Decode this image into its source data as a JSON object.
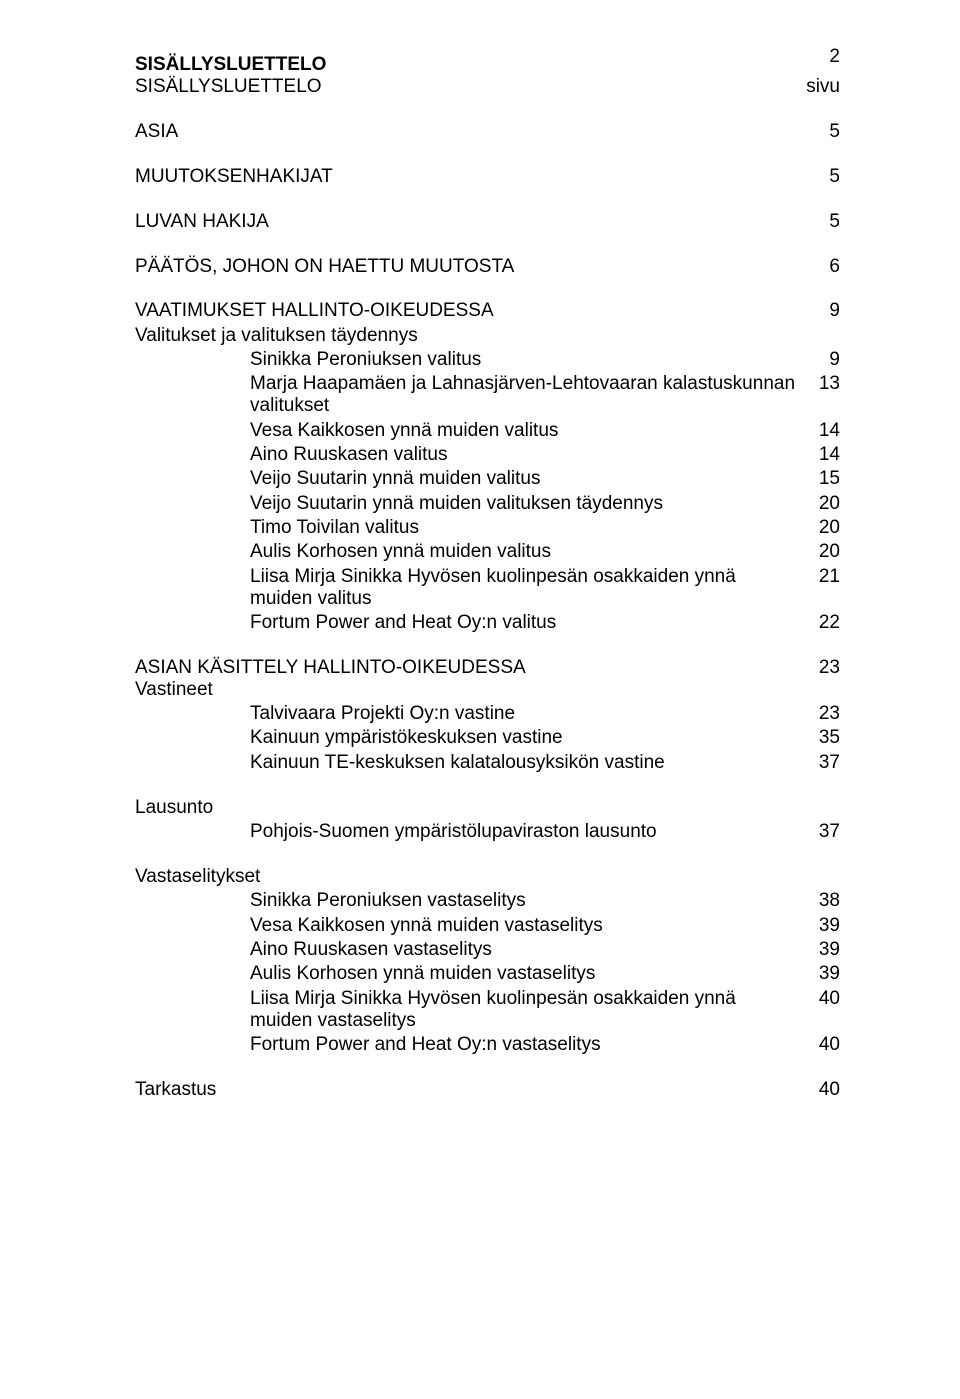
{
  "page_number": "2",
  "font": {
    "family": "Arial",
    "base_size_pt": 14
  },
  "colors": {
    "text": "#000000",
    "background": "#ffffff"
  },
  "heading1": "SISÄLLYSLUETTELO",
  "heading1_sub": "SISÄLLYSLUETTELO",
  "sivu_label": "sivu",
  "sections": {
    "asia": {
      "label": "ASIA",
      "page": "5"
    },
    "muutoksenhakijat": {
      "label": "MUUTOKSENHAKIJAT",
      "page": "5"
    },
    "luvanhakija": {
      "label": "LUVAN HAKIJA",
      "page": "5"
    },
    "paatos": {
      "label": "PÄÄTÖS, JOHON ON HAETTU MUUTOSTA",
      "page": "6"
    },
    "vaatimukset": {
      "label": "VAATIMUKSET HALLINTO-OIKEUDESSA",
      "page": "9",
      "sub": [
        {
          "label": "Valitukset ja valituksen täydennys",
          "page": ""
        },
        {
          "label": "Sinikka Peroniuksen valitus",
          "page": "9"
        },
        {
          "label": "Marja Haapamäen ja Lahnasjärven-Lehtovaaran kalastuskunnan valitukset",
          "page": "13"
        },
        {
          "label": "Vesa Kaikkosen ynnä muiden valitus",
          "page": "14"
        },
        {
          "label": "Aino Ruuskasen valitus",
          "page": "14"
        },
        {
          "label": "Veijo Suutarin ynnä muiden valitus",
          "page": "15"
        },
        {
          "label": "Veijo Suutarin ynnä muiden valituksen täydennys",
          "page": "20"
        },
        {
          "label": "Timo Toivilan valitus",
          "page": "20"
        },
        {
          "label": "Aulis Korhosen ynnä muiden valitus",
          "page": "20"
        },
        {
          "label": "Liisa Mirja Sinikka Hyvösen kuolinpesän osakkaiden ynnä muiden valitus",
          "page": "21"
        },
        {
          "label": "Fortum Power and Heat Oy:n valitus",
          "page": "22"
        }
      ]
    },
    "asiankasittely": {
      "label": "ASIAN KÄSITTELY HALLINTO-OIKEUDESSA",
      "page": "23",
      "vastineet_label": "Vastineet",
      "vastineet": [
        {
          "label": "Talvivaara Projekti Oy:n vastine",
          "page": "23"
        },
        {
          "label": "Kainuun ympäristökeskuksen vastine",
          "page": "35"
        },
        {
          "label": "Kainuun TE-keskuksen kalatalousyksikön vastine",
          "page": "37"
        }
      ],
      "lausunto_label": "Lausunto",
      "lausunto": [
        {
          "label": "Pohjois-Suomen ympäristölupaviraston lausunto",
          "page": "37"
        }
      ],
      "vastaselitykset_label": "Vastaselitykset",
      "vastaselitykset": [
        {
          "label": "Sinikka Peroniuksen vastaselitys",
          "page": "38"
        },
        {
          "label": "Vesa Kaikkosen ynnä muiden  vastaselitys",
          "page": "39"
        },
        {
          "label": "Aino Ruuskasen vastaselitys",
          "page": "39"
        },
        {
          "label": "Aulis Korhosen ynnä muiden vastaselitys",
          "page": "39"
        },
        {
          "label": "Liisa Mirja Sinikka Hyvösen kuolinpesän osakkaiden ynnä muiden vastaselitys",
          "page": "40"
        },
        {
          "label": "Fortum Power and Heat Oy:n vastaselitys",
          "page": "40"
        }
      ],
      "tarkastus": {
        "label": "Tarkastus",
        "page": "40"
      }
    }
  }
}
